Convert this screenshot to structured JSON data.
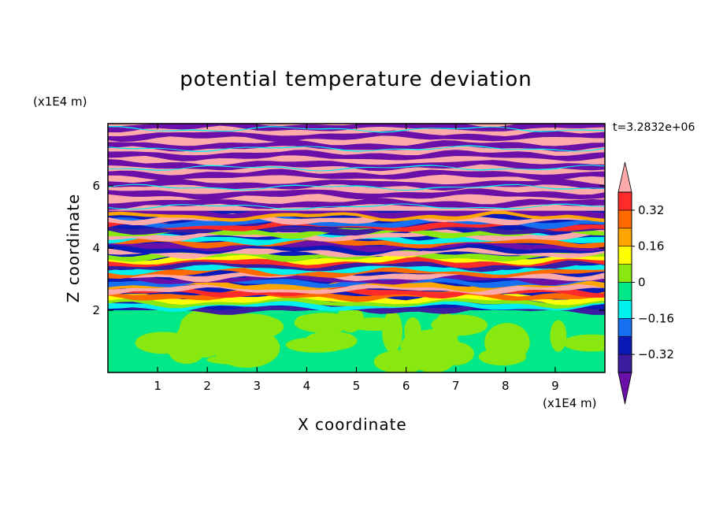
{
  "chart_data": {
    "type": "heatmap",
    "title": "potential temperature deviation",
    "xlabel": "X coordinate",
    "ylabel": "Z coordinate",
    "x_unit_label": "(x1E4 m)",
    "y_unit_label": "(x1E4 m)",
    "time_label": "t=3.2832e+06",
    "xlim": [
      0,
      10
    ],
    "ylim": [
      0,
      8
    ],
    "x_ticks": [
      "1",
      "2",
      "3",
      "4",
      "5",
      "6",
      "7",
      "8",
      "9"
    ],
    "y_ticks": [
      "2",
      "4",
      "6"
    ],
    "colorbar": {
      "levels": [
        -0.4,
        -0.32,
        -0.24,
        -0.16,
        -0.08,
        0,
        0.08,
        0.16,
        0.24,
        0.32,
        0.4
      ],
      "tick_labels": [
        "0.32",
        "0.16",
        "0",
        "−0.16",
        "−0.32"
      ],
      "colors": [
        "#6a0fa8",
        "#3c1ca0",
        "#0a1ab8",
        "#1470f0",
        "#00f0f0",
        "#00e888",
        "#88e810",
        "#ffff00",
        "#ffa500",
        "#ff6a00",
        "#ff2a2a",
        "#ffaaaa"
      ]
    },
    "fields": {
      "lower_layer": {
        "z_range": [
          0,
          2
        ],
        "dominant_values": [
          0,
          0.08
        ]
      },
      "turbulent_band": {
        "z_range": [
          2,
          5.2
        ]
      },
      "banded_upper_layer": {
        "z_range": [
          5.2,
          8
        ],
        "alternating_values": [
          0.4,
          -0.4
        ]
      }
    }
  }
}
